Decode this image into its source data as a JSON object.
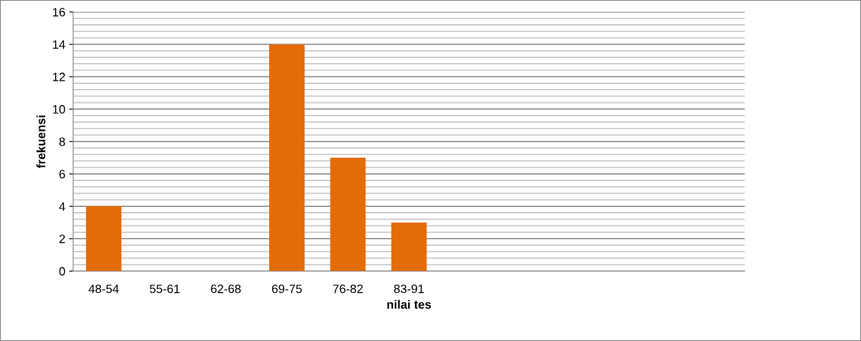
{
  "chart_data": {
    "type": "bar",
    "xlabel": "nilai tes",
    "ylabel": "frekuensi",
    "categories": [
      "48-54",
      "55-61",
      "62-68",
      "69-75",
      "76-82",
      "83-91",
      null,
      null,
      null,
      null,
      null
    ],
    "values": [
      4,
      0,
      0,
      14,
      7,
      3,
      null,
      null,
      null,
      null,
      null
    ],
    "color": "#e36c09",
    "ylim": [
      0,
      16
    ],
    "yticks": [
      0,
      2,
      4,
      6,
      8,
      10,
      12,
      14,
      16
    ],
    "grid": "y"
  }
}
